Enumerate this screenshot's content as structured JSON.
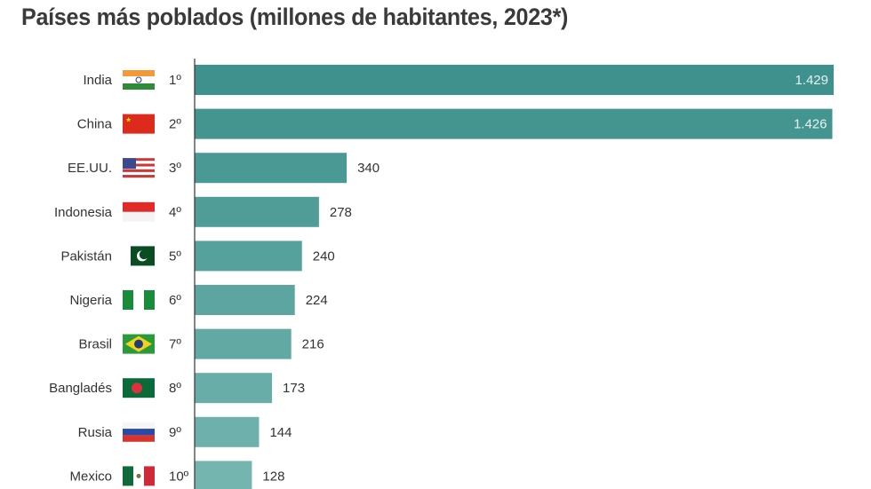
{
  "chart_data": {
    "type": "bar",
    "orientation": "horizontal",
    "title": "Países más poblados (millones de habitantes, 2023*)",
    "categories": [
      "India",
      "China",
      "EE.UU.",
      "Indonesia",
      "Pakistán",
      "Nigeria",
      "Brasil",
      "Bangladés",
      "Rusia",
      "Mexico"
    ],
    "ranks": [
      "1º",
      "2º",
      "3º",
      "4º",
      "5º",
      "6º",
      "7º",
      "8º",
      "9º",
      "10º"
    ],
    "values": [
      1429,
      1426,
      340,
      278,
      240,
      224,
      216,
      173,
      144,
      128
    ],
    "value_labels": [
      "1.429",
      "1.426",
      "340",
      "278",
      "240",
      "224",
      "216",
      "173",
      "144",
      "128"
    ],
    "flags": [
      "india-flag",
      "china-flag",
      "usa-flag",
      "indonesia-flag",
      "pakistan-flag",
      "nigeria-flag",
      "brazil-flag",
      "bangladesh-flag",
      "russia-flag",
      "mexico-flag"
    ],
    "xlim": [
      0,
      1429
    ],
    "grid": false,
    "colors": {
      "bar_dark": "#3e918c",
      "bar_light": "#74b5b0"
    }
  }
}
